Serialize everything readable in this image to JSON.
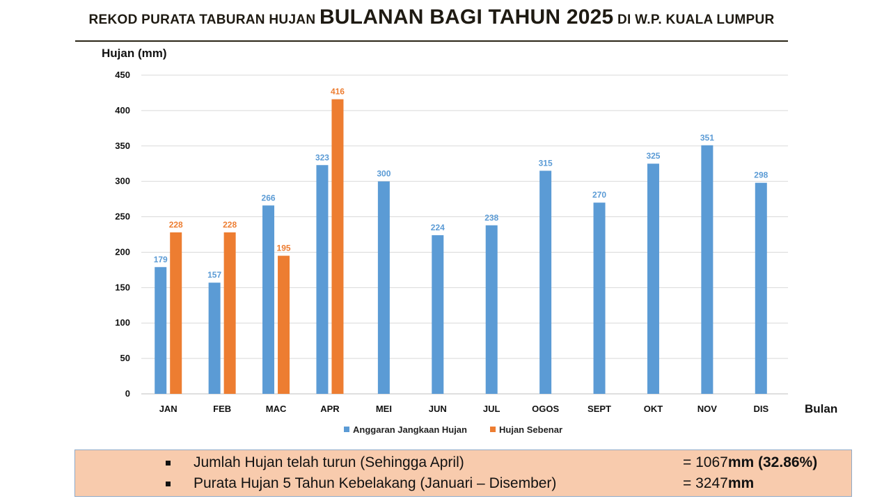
{
  "title": {
    "part1": "REKOD PURATA TABURAN HUJAN ",
    "part2": "BULANAN BAGI TAHUN 2025",
    "part3": " DI W.P. KUALA LUMPUR"
  },
  "chart_data": {
    "type": "bar",
    "ylabel": "Hujan (mm)",
    "xlabel": "Bulan",
    "ylim": [
      0,
      450
    ],
    "yticks": [
      0,
      50,
      100,
      150,
      200,
      250,
      300,
      350,
      400,
      450
    ],
    "grid": true,
    "legend_position": "bottom",
    "categories": [
      "JAN",
      "FEB",
      "MAC",
      "APR",
      "MEI",
      "JUN",
      "JUL",
      "OGOS",
      "SEPT",
      "OKT",
      "NOV",
      "DIS"
    ],
    "series": [
      {
        "name": "Anggaran Jangkaan Hujan",
        "color": "#5b9bd5",
        "values": [
          179,
          157,
          266,
          323,
          300,
          224,
          238,
          315,
          270,
          325,
          351,
          298
        ]
      },
      {
        "name": "Hujan Sebenar",
        "color": "#ed7d31",
        "values": [
          228,
          228,
          195,
          416,
          null,
          null,
          null,
          null,
          null,
          null,
          null,
          null
        ]
      }
    ]
  },
  "summary": {
    "row1_label": "Jumlah Hujan telah turun (Sehingga April)",
    "row1_eq": "= 1067",
    "row1_unit": "mm (32.86%)",
    "row2_label": "Purata Hujan 5 Tahun Kebelakang (Januari – Disember)",
    "row2_eq": "= 3247",
    "row2_unit": "mm"
  }
}
